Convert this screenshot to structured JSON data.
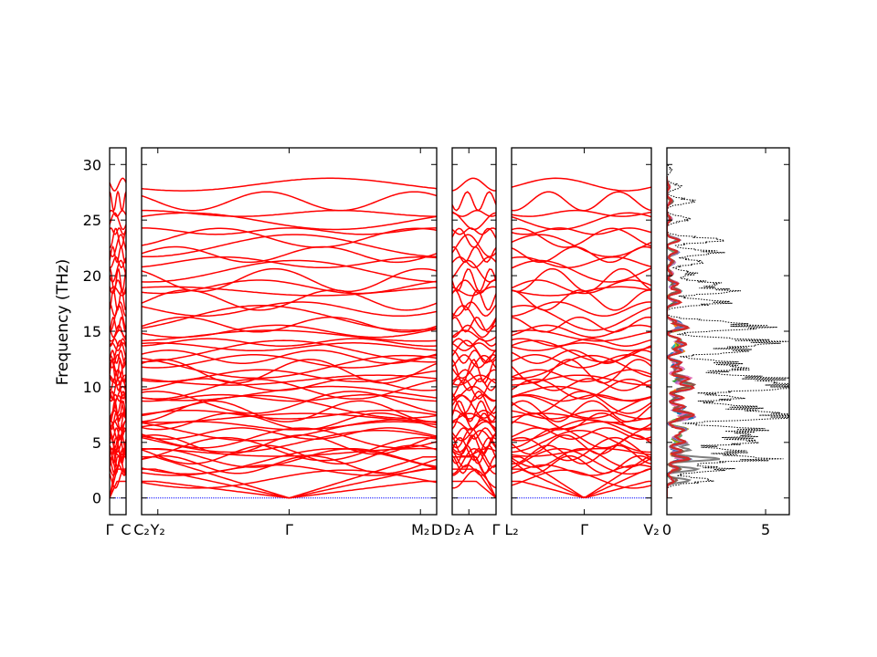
{
  "chart_data": {
    "type": "line",
    "ylabel": "Frequency (THz)",
    "ylim": [
      -1.5,
      31.5
    ],
    "y_ticks": [
      "0",
      "5",
      "10",
      "15",
      "20",
      "25",
      "30"
    ],
    "band_color": "#ff0000",
    "zero_line_color": "#0000ff",
    "panels": [
      {
        "segments": [
          [
            "Γ",
            "C"
          ]
        ],
        "x_tick_labels": [
          "Γ",
          "C"
        ]
      },
      {
        "segments": [
          [
            "C₂",
            "Y₂"
          ],
          [
            "Y₂",
            "Γ"
          ],
          [
            "Γ",
            "M₂"
          ],
          [
            "M₂",
            "D"
          ]
        ],
        "x_tick_labels": [
          "C₂",
          "Y₂",
          "Γ",
          "M₂",
          "D"
        ]
      },
      {
        "segments": [
          [
            "D₂",
            "A"
          ],
          [
            "A",
            "Γ"
          ]
        ],
        "x_tick_labels": [
          "D₂",
          "A",
          "Γ"
        ]
      },
      {
        "segments": [
          [
            "L₂",
            "Γ"
          ],
          [
            "Γ",
            "V₂"
          ]
        ],
        "x_tick_labels": [
          "L₂",
          "Γ",
          "V₂"
        ]
      }
    ],
    "dos": {
      "x_ticks": [
        "0",
        "5"
      ],
      "xlim": [
        0,
        6.2
      ],
      "total_color": "#000000",
      "partial_colors": [
        "#7f7f7f",
        "#17becf",
        "#bcbd22",
        "#2ca02c",
        "#ff7f0e",
        "#9467bd",
        "#1f77b4",
        "#e377c2",
        "#8c564b",
        "#d62728"
      ],
      "total_peaks": [
        [
          1.6,
          2.6
        ],
        [
          2.6,
          3.5
        ],
        [
          3.5,
          6.0
        ],
        [
          4.2,
          4.2
        ],
        [
          5.0,
          4.9
        ],
        [
          5.6,
          4.3
        ],
        [
          6.2,
          5.1
        ],
        [
          7.2,
          5.8
        ],
        [
          7.6,
          5.2
        ],
        [
          8.2,
          4.6
        ],
        [
          9.0,
          4.2
        ],
        [
          9.8,
          5.1
        ],
        [
          10.2,
          6.1
        ],
        [
          10.8,
          6.0
        ],
        [
          11.6,
          4.3
        ],
        [
          12.2,
          3.6
        ],
        [
          13.2,
          4.3
        ],
        [
          13.8,
          4.1
        ],
        [
          14.2,
          4.5
        ],
        [
          15.3,
          5.2
        ],
        [
          15.8,
          3.1
        ],
        [
          17.6,
          3.5
        ],
        [
          18.6,
          3.9
        ],
        [
          19.3,
          2.9
        ],
        [
          20.2,
          1.6
        ],
        [
          21.2,
          2.1
        ],
        [
          22.1,
          3.0
        ],
        [
          23.2,
          3.3
        ],
        [
          25.1,
          1.3
        ],
        [
          26.7,
          1.6
        ],
        [
          28.0,
          0.8
        ],
        [
          29.5,
          0.3
        ]
      ]
    }
  }
}
